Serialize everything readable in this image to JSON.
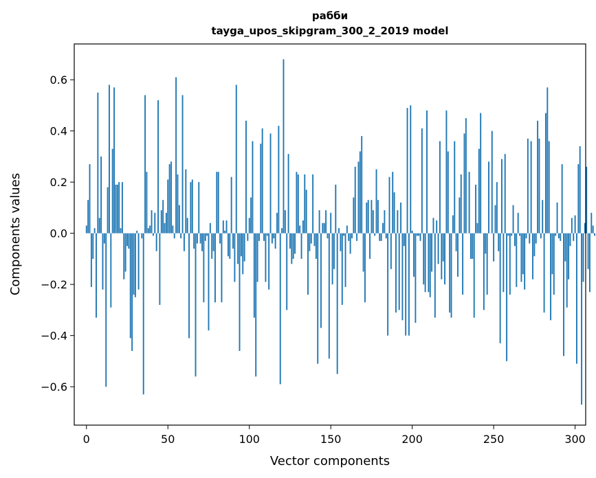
{
  "chart_data": {
    "type": "bar",
    "title": "рабби",
    "subtitle": "tayga_upos_skipgram_300_2_2019 model",
    "xlabel": "Vector components",
    "ylabel": "Components values",
    "xlim": [
      -7.5,
      306.5
    ],
    "ylim": [
      -0.75,
      0.74
    ],
    "xticks": [
      0,
      50,
      100,
      150,
      200,
      250,
      300
    ],
    "xtick_labels": [
      "0",
      "50",
      "100",
      "150",
      "200",
      "250",
      "300"
    ],
    "yticks": [
      -0.6,
      -0.4,
      -0.2,
      0.0,
      0.2,
      0.4,
      0.6
    ],
    "ytick_labels": [
      "−0.6",
      "−0.4",
      "−0.2",
      "0.0",
      "0.2",
      "0.4",
      "0.6"
    ],
    "bar_color": "#1f77b4",
    "values": [
      0.03,
      0.13,
      0.27,
      -0.21,
      -0.1,
      0.02,
      -0.33,
      0.55,
      0.06,
      0.3,
      -0.22,
      -0.04,
      -0.6,
      0.18,
      0.58,
      -0.29,
      0.33,
      0.57,
      0.19,
      0.19,
      0.2,
      0.02,
      0.2,
      -0.18,
      -0.15,
      -0.05,
      -0.06,
      -0.41,
      -0.46,
      -0.24,
      -0.25,
      0.01,
      -0.22,
      0.0,
      -0.02,
      -0.63,
      0.54,
      0.24,
      0.02,
      0.03,
      0.09,
      -0.01,
      0.08,
      -0.07,
      0.52,
      -0.28,
      0.09,
      0.13,
      0.04,
      0.08,
      0.21,
      0.27,
      0.28,
      0.03,
      -0.02,
      0.61,
      0.23,
      0.11,
      -0.02,
      0.54,
      -0.07,
      0.25,
      0.06,
      -0.41,
      0.2,
      0.21,
      -0.06,
      -0.56,
      -0.04,
      0.2,
      -0.04,
      -0.07,
      -0.27,
      -0.03,
      -0.01,
      -0.38,
      0.04,
      -0.1,
      -0.07,
      -0.27,
      0.24,
      0.24,
      -0.04,
      -0.27,
      0.05,
      0.01,
      0.05,
      -0.09,
      -0.1,
      0.22,
      -0.06,
      -0.19,
      0.58,
      -0.12,
      -0.46,
      -0.09,
      -0.16,
      -0.11,
      0.44,
      -0.03,
      0.06,
      0.14,
      0.36,
      -0.33,
      -0.56,
      -0.19,
      -0.03,
      0.35,
      0.41,
      -0.03,
      -0.19,
      -0.01,
      -0.22,
      0.39,
      -0.04,
      -0.02,
      -0.06,
      0.08,
      0.42,
      -0.59,
      0.02,
      0.68,
      0.09,
      -0.3,
      0.31,
      -0.06,
      -0.12,
      -0.1,
      -0.08,
      0.24,
      0.23,
      0.03,
      -0.1,
      0.05,
      0.23,
      0.17,
      -0.24,
      -0.07,
      -0.04,
      0.23,
      -0.05,
      -0.1,
      -0.51,
      0.09,
      -0.37,
      0.04,
      0.04,
      0.09,
      -0.02,
      -0.49,
      0.08,
      -0.2,
      -0.14,
      0.19,
      -0.55,
      0.02,
      -0.07,
      -0.28,
      -0.01,
      -0.21,
      0.03,
      -0.03,
      -0.08,
      -0.02,
      0.14,
      0.26,
      -0.03,
      0.28,
      0.32,
      0.38,
      -0.15,
      -0.27,
      0.12,
      0.13,
      -0.1,
      0.13,
      0.09,
      -0.01,
      0.25,
      0.13,
      -0.03,
      -0.03,
      0.04,
      0.09,
      -0.02,
      -0.4,
      0.22,
      -0.14,
      0.24,
      0.16,
      -0.31,
      0.09,
      -0.3,
      0.12,
      -0.34,
      -0.05,
      -0.4,
      0.49,
      -0.4,
      0.5,
      0.01,
      -0.17,
      -0.35,
      -0.01,
      -0.01,
      -0.03,
      0.41,
      -0.2,
      -0.23,
      0.48,
      -0.23,
      -0.25,
      -0.15,
      0.06,
      -0.33,
      0.05,
      -0.12,
      0.36,
      -0.18,
      -0.11,
      -0.2,
      0.48,
      0.32,
      -0.31,
      -0.33,
      0.07,
      0.36,
      -0.07,
      -0.17,
      0.14,
      0.23,
      -0.24,
      0.39,
      0.45,
      0.0,
      0.24,
      -0.1,
      -0.1,
      -0.33,
      0.19,
      0.04,
      0.33,
      0.47,
      0.0,
      -0.3,
      -0.08,
      -0.24,
      0.28,
      0.0,
      0.4,
      -0.11,
      0.11,
      0.2,
      -0.07,
      -0.43,
      0.29,
      -0.23,
      0.31,
      -0.5,
      -0.01,
      -0.24,
      -0.01,
      0.11,
      -0.05,
      -0.21,
      0.08,
      -0.01,
      -0.19,
      -0.16,
      -0.22,
      -0.02,
      0.37,
      -0.04,
      0.36,
      -0.18,
      -0.09,
      -0.04,
      0.44,
      0.37,
      -0.02,
      0.13,
      -0.31,
      0.47,
      0.57,
      0.36,
      -0.34,
      -0.16,
      -0.24,
      -0.01,
      0.12,
      -0.02,
      -0.03,
      0.27,
      -0.48,
      -0.11,
      -0.29,
      -0.18,
      -0.05,
      0.06,
      -0.03,
      0.07,
      -0.51,
      0.27,
      0.34,
      -0.67,
      -0.19,
      0.04,
      0.26,
      -0.14,
      -0.23,
      0.08,
      0.03,
      -0.01
    ]
  }
}
